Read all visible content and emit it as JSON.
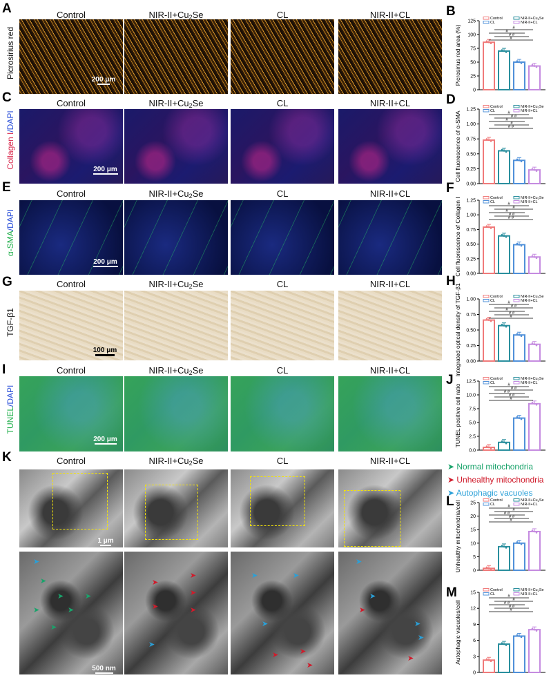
{
  "columns": [
    "Control",
    "NIR-II+Cu",
    "CL",
    "NIR-II+CL"
  ],
  "column_sub": "2",
  "column_suffix": "Se",
  "panels": {
    "A": {
      "letter": "A",
      "row_label": "Picrosirius red",
      "scale": "200 μm"
    },
    "C": {
      "letter": "C",
      "row_label_a": "Collagen I",
      "row_label_b": "/DAPI",
      "scale": "200 μm"
    },
    "E": {
      "letter": "E",
      "row_label_a": "α-SMA",
      "row_label_b": "/DAPI",
      "scale": "200 μm"
    },
    "G": {
      "letter": "G",
      "row_label": "TGF-β1",
      "scale": "100 μm"
    },
    "I": {
      "letter": "I",
      "row_label_a": "TUNEL",
      "row_label_b": "/DAPI",
      "scale": "200 μm"
    },
    "K": {
      "letter": "K",
      "scale_top": "1 μm",
      "scale_bottom": "500 nm",
      "legend": {
        "normal": "Normal mitochondria",
        "unhealthy": "Unhealthy mitochondria",
        "autophagic": "Autophagic vacuoles"
      }
    }
  },
  "colors": {
    "control": "#f07a7a",
    "cu2se": "#2a8f9e",
    "cl": "#4f90d9",
    "nircl": "#c58be0",
    "normal_arrow": "#1aa36b",
    "unhealthy_arrow": "#d01b2b",
    "autophagic_arrow": "#2aa0d8"
  },
  "legend_labels": [
    "Control",
    "NIR-II+Cu",
    "CL",
    "NIR-II+CL"
  ],
  "chart_data": [
    {
      "panel": "B",
      "type": "bar",
      "categories": [
        "Control",
        "NIR-II+Cu2Se",
        "CL",
        "NIR-II+CL"
      ],
      "values": [
        86,
        70,
        50,
        43
      ],
      "ylabel": "Picrosirius red area (%)",
      "ylim": [
        0,
        125
      ],
      "yticks": [
        "0",
        "25",
        "50",
        "75",
        "100",
        "125"
      ],
      "ytick_values": [
        0,
        25,
        50,
        75,
        100,
        125
      ],
      "sig": [
        "#",
        "# #",
        "#",
        "#"
      ]
    },
    {
      "panel": "D",
      "type": "bar",
      "categories": [
        "Control",
        "NIR-II+Cu2Se",
        "CL",
        "NIR-II+CL"
      ],
      "values": [
        0.73,
        0.55,
        0.39,
        0.23
      ],
      "ylabel": "Cell fluorescence of α-SMA",
      "ylim": [
        0,
        1.25
      ],
      "yticks": [
        "0.00",
        "0.25",
        "0.50",
        "0.75",
        "1.00",
        "1.25"
      ],
      "ytick_values": [
        0,
        0.25,
        0.5,
        0.75,
        1.0,
        1.25
      ],
      "sig": [
        "# #",
        "#",
        "#",
        "# #",
        "#"
      ]
    },
    {
      "panel": "F",
      "type": "bar",
      "categories": [
        "Control",
        "NIR-II+Cu2Se",
        "CL",
        "NIR-II+CL"
      ],
      "values": [
        0.79,
        0.64,
        0.49,
        0.28
      ],
      "ylabel": "Cell fluorescence of Collagen I",
      "ylim": [
        0,
        1.25
      ],
      "yticks": [
        "0.00",
        "0.25",
        "0.50",
        "0.75",
        "1.00",
        "1.25"
      ],
      "ytick_values": [
        0,
        0.25,
        0.5,
        0.75,
        1.0,
        1.25
      ],
      "sig": [
        "# #",
        "# #",
        "#",
        "#",
        "#"
      ]
    },
    {
      "panel": "H",
      "type": "bar",
      "categories": [
        "Control",
        "NIR-II+Cu2Se",
        "CL",
        "NIR-II+CL"
      ],
      "values": [
        0.66,
        0.57,
        0.42,
        0.27
      ],
      "ylabel": "Integrated optical density of TGF-β1",
      "ylim": [
        0,
        1.0
      ],
      "yticks": [
        "0.00",
        "0.25",
        "0.50",
        "0.75",
        "1.00"
      ],
      "ytick_values": [
        0,
        0.25,
        0.5,
        0.75,
        1.0
      ],
      "sig": [
        "#",
        "# #",
        "#",
        "# #",
        "#"
      ]
    },
    {
      "panel": "J",
      "type": "bar",
      "categories": [
        "Control",
        "NIR-II+Cu2Se",
        "CL",
        "NIR-II+CL"
      ],
      "values": [
        0.5,
        1.4,
        5.8,
        8.4
      ],
      "ylabel": "TUNEL positive cell ratio",
      "ylim": [
        0,
        12.5
      ],
      "yticks": [
        "0.0",
        "2.5",
        "5.0",
        "7.5",
        "10.0",
        "12.5"
      ],
      "ytick_values": [
        0,
        2.5,
        5.0,
        7.5,
        10.0,
        12.5
      ],
      "sig": [
        "#",
        "# #",
        "# #",
        "# #",
        "#"
      ]
    },
    {
      "panel": "L",
      "type": "bar",
      "categories": [
        "Control",
        "NIR-II+Cu2Se",
        "CL",
        "NIR-II+CL"
      ],
      "values": [
        0.7,
        8.7,
        10,
        14.3
      ],
      "ylabel": "Unhealthy mitochondria/cell",
      "ylim": [
        0,
        25
      ],
      "yticks": [
        "0",
        "5",
        "10",
        "15",
        "20",
        "25"
      ],
      "ytick_values": [
        0,
        5,
        10,
        15,
        20,
        25
      ],
      "sig": [
        "#",
        "# #",
        "# #",
        "#",
        "#"
      ]
    },
    {
      "panel": "M",
      "type": "bar",
      "categories": [
        "Control",
        "NIR-II+Cu2Se",
        "CL",
        "NIR-II+CL"
      ],
      "values": [
        2.3,
        5.3,
        6.8,
        8
      ],
      "ylabel": "Autophagic vacuoles/cell",
      "ylim": [
        0,
        15
      ],
      "yticks": [
        "0",
        "3",
        "6",
        "9",
        "12",
        "15"
      ],
      "ytick_values": [
        0,
        3,
        6,
        9,
        12,
        15
      ],
      "sig": [
        "#",
        "# #",
        "# #",
        "#",
        "#"
      ]
    }
  ]
}
